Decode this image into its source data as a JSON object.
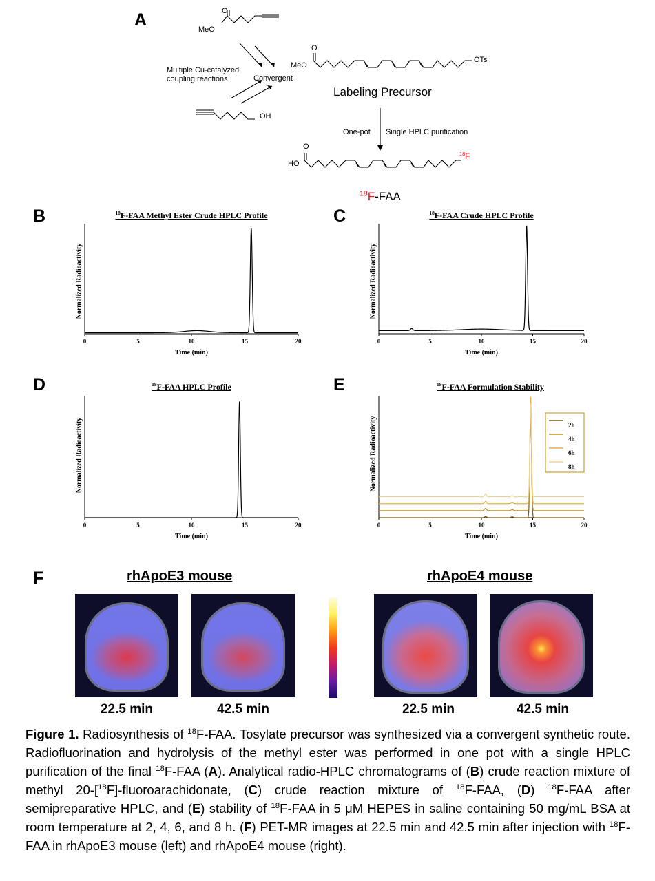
{
  "panel_a": {
    "letter": "A",
    "sm1_label": "MeO",
    "sm2_label": "OH",
    "precursor_meo": "MeO",
    "precursor_ots": "OTs",
    "coupling_text_1": "Multiple Cu-catalyzed",
    "coupling_text_2": "coupling reactions",
    "convergent": "Convergent",
    "precursor_name": "Labeling Precursor",
    "step_left": "One-pot",
    "step_right": "Single HPLC purification",
    "product_ho": "HO",
    "product_o": "O",
    "product_iso": "18",
    "product_f": "F",
    "product_name_iso": "18",
    "product_name_f": "F",
    "product_name_rest": "-FAA",
    "accent_color": "#e8141c"
  },
  "charts_text": {
    "B": {
      "letter": "B",
      "title_iso": "18",
      "title": "F-FAA Methyl Ester Crude HPLC Profile",
      "ylabel": "Normalized Radioactivity",
      "xlabel": "Time (min)"
    },
    "C": {
      "letter": "C",
      "title_iso": "18",
      "title": "F-FAA Crude HPLC Profile",
      "ylabel": "Normalized Radioactivity",
      "xlabel": "Time (min)"
    },
    "D": {
      "letter": "D",
      "title_iso": "18",
      "title": "F-FAA HPLC Profile",
      "ylabel": "Normalized Radioactivity",
      "xlabel": "Time (min)"
    },
    "E": {
      "letter": "E",
      "title_iso": "18",
      "title": "F-FAA Formulation Stability",
      "ylabel": "Normalized Radioactivity",
      "xlabel": "Time (min)"
    }
  },
  "chart_data": [
    {
      "id": "B",
      "type": "line",
      "title": "18F-FAA Methyl Ester Crude HPLC Profile",
      "xlabel": "Time (min)",
      "ylabel": "Normalized Radioactivity",
      "xlim": [
        0,
        20
      ],
      "ylim": [
        0,
        1.05
      ],
      "xticks": [
        0,
        5,
        10,
        15,
        20
      ],
      "grid": false,
      "series": [
        {
          "color": "#000000",
          "baseline": 0.01,
          "peaks": [
            {
              "x": 10.5,
              "height": 0.02,
              "width": 1.2
            },
            {
              "x": 15.6,
              "height": 1.0,
              "width": 0.09
            }
          ]
        }
      ]
    },
    {
      "id": "C",
      "type": "line",
      "title": "18F-FAA Crude HPLC Profile",
      "xlabel": "Time (min)",
      "ylabel": "Normalized Radioactivity",
      "xlim": [
        0,
        20
      ],
      "ylim": [
        0,
        1.05
      ],
      "xticks": [
        0,
        5,
        10,
        15,
        20
      ],
      "grid": false,
      "series": [
        {
          "color": "#000000",
          "baseline": 0.03,
          "peaks": [
            {
              "x": 3.2,
              "height": 0.02,
              "width": 0.12
            },
            {
              "x": 10.0,
              "height": 0.015,
              "width": 2.0
            },
            {
              "x": 14.4,
              "height": 1.0,
              "width": 0.09
            }
          ]
        }
      ]
    },
    {
      "id": "D",
      "type": "line",
      "title": "18F-FAA HPLC Profile",
      "xlabel": "Time (min)",
      "ylabel": "Normalized Radioactivity",
      "xlim": [
        0,
        20
      ],
      "ylim": [
        0,
        1.05
      ],
      "xticks": [
        0,
        5,
        10,
        15,
        20
      ],
      "grid": false,
      "series": [
        {
          "color": "#000000",
          "baseline": 0.0,
          "peaks": [
            {
              "x": 14.5,
              "height": 1.0,
              "width": 0.08
            }
          ]
        }
      ]
    },
    {
      "id": "E",
      "type": "line",
      "title": "18F-FAA Formulation Stability",
      "xlabel": "Time (min)",
      "ylabel": "Normalized Radioactivity",
      "xlim": [
        0,
        20
      ],
      "ylim": [
        0,
        1.05
      ],
      "xticks": [
        0,
        5,
        10,
        15,
        20
      ],
      "grid": false,
      "legend_position": "top-right",
      "series": [
        {
          "name": "2h",
          "color": "#7a5a10",
          "baseline": 0.0,
          "peaks": [
            {
              "x": 10.4,
              "height": 0.01,
              "width": 0.1
            },
            {
              "x": 13.0,
              "height": 0.008,
              "width": 0.1
            },
            {
              "x": 14.8,
              "height": 0.95,
              "width": 0.08
            }
          ]
        },
        {
          "name": "4h",
          "color": "#c4901c",
          "baseline": 0.06,
          "peaks": [
            {
              "x": 10.4,
              "height": 0.02,
              "width": 0.1
            },
            {
              "x": 13.0,
              "height": 0.01,
              "width": 0.1
            },
            {
              "x": 14.8,
              "height": 0.95,
              "width": 0.08
            }
          ]
        },
        {
          "name": "6h",
          "color": "#e3b445",
          "baseline": 0.12,
          "peaks": [
            {
              "x": 10.4,
              "height": 0.02,
              "width": 0.1
            },
            {
              "x": 13.0,
              "height": 0.01,
              "width": 0.1
            },
            {
              "x": 14.8,
              "height": 0.92,
              "width": 0.08
            }
          ]
        },
        {
          "name": "8h",
          "color": "#f1d594",
          "baseline": 0.18,
          "peaks": [
            {
              "x": 10.4,
              "height": 0.02,
              "width": 0.1
            },
            {
              "x": 13.0,
              "height": 0.01,
              "width": 0.1
            },
            {
              "x": 14.8,
              "height": 0.8,
              "width": 0.08
            }
          ]
        }
      ]
    }
  ],
  "panel_f": {
    "letter": "F",
    "left_group_title": "rhApoE3 mouse",
    "right_group_title": "rhApoE4 mouse",
    "times": [
      "22.5 min",
      "42.5 min",
      "22.5 min",
      "42.5 min"
    ],
    "colorbar_colors": [
      "#1a0a6b",
      "#6a1aa0",
      "#c2186c",
      "#f03a1a",
      "#ff9a10",
      "#fff060",
      "#fffbe0"
    ]
  },
  "caption": {
    "label": "Figure 1.",
    "t1": " Radiosynthesis of ",
    "sup1": "18",
    "t2": "F-FAA. Tosylate precursor was synthesized via a convergent synthetic route. Radiofluorination and hydrolysis of the methyl ester was performed in one pot with a single HPLC purification of the final ",
    "sup2": "18",
    "t3": "F-FAA (",
    "a": "A",
    "t4": "). Analytical radio-HPLC chromatograms of (",
    "b": "B",
    "t5": ") crude reaction mixture of methyl 20-[",
    "sup3": "18",
    "t6": "F]-fluoroarachidonate, (",
    "c": "C",
    "t7": ") crude reaction mixture of ",
    "sup4": "18",
    "t8": "F-FAA, (",
    "d": "D",
    "t9": ") ",
    "sup5": "18",
    "t10": "F-FAA after semipreparative HPLC, and (",
    "e": "E",
    "t11": ") stability of ",
    "sup6": "18",
    "t12": "F-FAA in 5 μM HEPES in saline containing 50 mg/mL BSA at room temperature at 2, 4, 6, and 8 h. (",
    "f": "F",
    "t13": ") PET-MR images at 22.5 min and 42.5 min after injection with ",
    "sup7": "18",
    "t14": "F-FAA in rhApoE3 mouse (left) and rhApoE4 mouse (right)."
  }
}
